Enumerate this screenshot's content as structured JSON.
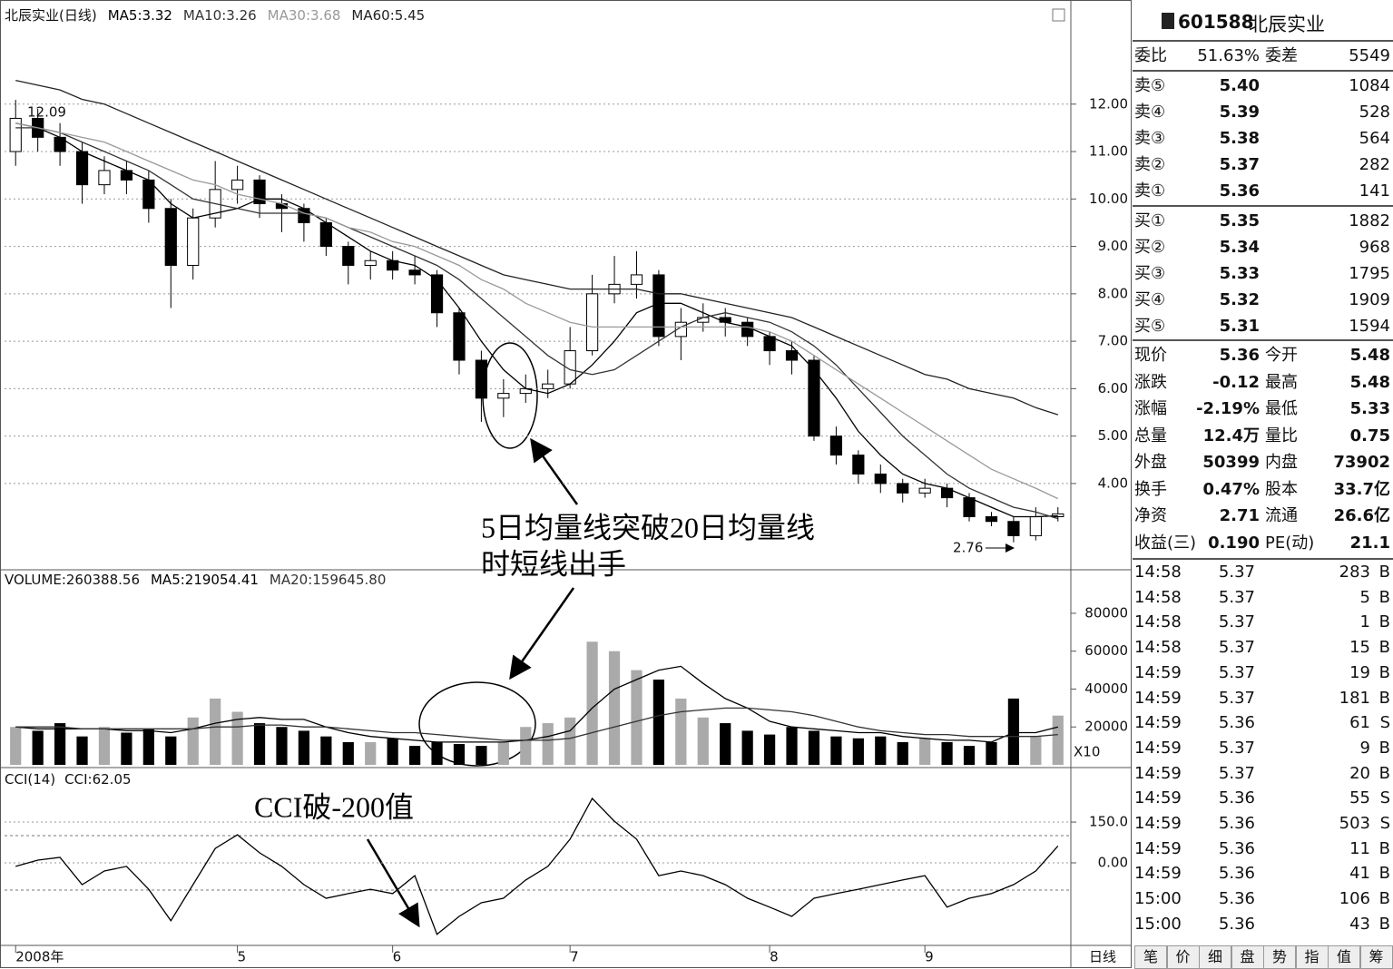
{
  "chart_data": [
    {
      "type": "candlestick",
      "title": "北辰实业(日线)",
      "categories": [
        "2008年",
        null,
        null,
        null,
        null,
        null,
        null,
        null,
        null,
        null,
        "5",
        null,
        null,
        null,
        null,
        null,
        null,
        "6",
        null,
        null,
        null,
        null,
        null,
        null,
        null,
        "7",
        null,
        null,
        null,
        null,
        null,
        null,
        null,
        null,
        "8",
        null,
        null,
        null,
        null,
        null,
        null,
        "9",
        null,
        null,
        null,
        null,
        null,
        null
      ],
      "open": [
        11.0,
        11.7,
        11.3,
        11.0,
        10.3,
        10.6,
        10.4,
        9.8,
        8.6,
        9.6,
        10.2,
        10.4,
        9.9,
        9.8,
        9.5,
        9.0,
        8.6,
        8.7,
        8.5,
        8.4,
        7.6,
        6.6,
        5.8,
        5.9,
        6.0,
        6.1,
        6.8,
        8.0,
        8.2,
        8.4,
        7.1,
        7.4,
        7.5,
        7.4,
        7.1,
        6.8,
        6.6,
        5.0,
        4.6,
        4.2,
        4.0,
        3.8,
        3.9,
        3.7,
        3.3,
        3.2,
        2.9,
        3.3
      ],
      "high": [
        12.09,
        11.9,
        11.6,
        11.2,
        10.9,
        10.8,
        10.6,
        10.0,
        9.8,
        10.8,
        10.7,
        10.5,
        10.1,
        9.9,
        9.6,
        9.1,
        8.9,
        8.9,
        8.8,
        8.5,
        7.7,
        6.8,
        6.2,
        6.3,
        6.4,
        7.3,
        8.4,
        8.8,
        8.9,
        8.5,
        7.7,
        7.8,
        7.7,
        7.5,
        7.2,
        7.0,
        6.7,
        5.2,
        4.7,
        4.4,
        4.1,
        4.1,
        4.0,
        3.8,
        3.4,
        3.3,
        3.5,
        3.5
      ],
      "low": [
        10.7,
        11.0,
        10.7,
        9.9,
        10.1,
        10.1,
        9.5,
        7.7,
        8.3,
        9.4,
        9.9,
        9.6,
        9.3,
        9.1,
        8.8,
        8.2,
        8.3,
        8.3,
        8.2,
        7.3,
        6.3,
        5.3,
        5.4,
        5.7,
        5.8,
        6.0,
        6.7,
        7.8,
        7.9,
        6.9,
        6.6,
        7.2,
        7.1,
        6.9,
        6.5,
        6.3,
        4.9,
        4.4,
        4.0,
        3.8,
        3.6,
        3.7,
        3.5,
        3.2,
        3.1,
        2.76,
        2.8,
        3.2
      ],
      "close": [
        11.7,
        11.3,
        11.0,
        10.3,
        10.6,
        10.4,
        9.8,
        8.6,
        9.6,
        10.2,
        10.4,
        9.9,
        9.8,
        9.5,
        9.0,
        8.6,
        8.7,
        8.5,
        8.4,
        7.6,
        6.6,
        5.8,
        5.9,
        6.0,
        6.1,
        6.8,
        8.0,
        8.2,
        8.4,
        7.1,
        7.4,
        7.5,
        7.4,
        7.1,
        6.8,
        6.6,
        5.0,
        4.6,
        4.2,
        4.0,
        3.8,
        3.9,
        3.7,
        3.3,
        3.2,
        2.9,
        3.3,
        3.36
      ],
      "series": [
        {
          "label": "MA5:3.32",
          "color": "#000000",
          "values": [
            11.6,
            11.5,
            11.3,
            11.0,
            10.8,
            10.6,
            10.4,
            9.9,
            9.6,
            9.7,
            9.8,
            10.0,
            10.0,
            9.8,
            9.5,
            9.2,
            8.9,
            8.7,
            8.6,
            8.3,
            7.7,
            7.0,
            6.4,
            6.0,
            5.9,
            6.1,
            6.5,
            7.0,
            7.6,
            7.8,
            7.8,
            7.6,
            7.4,
            7.3,
            7.1,
            6.9,
            6.4,
            5.8,
            5.1,
            4.6,
            4.2,
            4.0,
            3.9,
            3.7,
            3.5,
            3.3,
            3.3,
            3.32
          ]
        },
        {
          "label": "MA10:3.26",
          "color": "#333333",
          "values": [
            11.5,
            11.5,
            11.4,
            11.2,
            11.0,
            10.8,
            10.6,
            10.3,
            10.0,
            9.9,
            9.8,
            9.7,
            9.7,
            9.7,
            9.6,
            9.4,
            9.2,
            9.0,
            8.8,
            8.6,
            8.3,
            7.9,
            7.5,
            7.1,
            6.7,
            6.4,
            6.3,
            6.4,
            6.7,
            7.0,
            7.3,
            7.5,
            7.6,
            7.5,
            7.4,
            7.2,
            6.9,
            6.5,
            6.0,
            5.5,
            5.0,
            4.6,
            4.2,
            3.9,
            3.7,
            3.5,
            3.4,
            3.26
          ]
        },
        {
          "label": "MA30:3.68",
          "color": "#999999",
          "values": [
            11.6,
            11.5,
            11.4,
            11.3,
            11.2,
            11.0,
            10.8,
            10.6,
            10.4,
            10.3,
            10.1,
            10.0,
            9.9,
            9.7,
            9.6,
            9.4,
            9.3,
            9.1,
            9.0,
            8.8,
            8.6,
            8.3,
            8.1,
            7.8,
            7.6,
            7.4,
            7.3,
            7.3,
            7.3,
            7.3,
            7.3,
            7.3,
            7.3,
            7.3,
            7.2,
            7.0,
            6.7,
            6.4,
            6.1,
            5.8,
            5.5,
            5.2,
            4.9,
            4.6,
            4.3,
            4.1,
            3.9,
            3.68
          ]
        },
        {
          "label": "MA60:5.45",
          "color": "#222222",
          "values": [
            12.5,
            12.4,
            12.3,
            12.1,
            12.0,
            11.8,
            11.6,
            11.4,
            11.2,
            11.0,
            10.8,
            10.6,
            10.4,
            10.2,
            10.0,
            9.8,
            9.6,
            9.4,
            9.2,
            9.0,
            8.8,
            8.6,
            8.4,
            8.3,
            8.2,
            8.1,
            8.1,
            8.1,
            8.1,
            8.0,
            8.0,
            7.9,
            7.8,
            7.7,
            7.6,
            7.5,
            7.3,
            7.1,
            6.9,
            6.7,
            6.5,
            6.3,
            6.2,
            6.0,
            5.9,
            5.8,
            5.6,
            5.45
          ]
        }
      ],
      "ylim": [
        2.2,
        14.1
      ],
      "yticks": [
        {
          "value": 4,
          "label": "4.00"
        },
        {
          "value": 5,
          "label": "5.00"
        },
        {
          "value": 6,
          "label": "6.00"
        },
        {
          "value": 7,
          "label": "7.00"
        },
        {
          "value": 8,
          "label": "8.00"
        },
        {
          "value": 9,
          "label": "9.00"
        },
        {
          "value": 10,
          "label": "10.00"
        },
        {
          "value": 11,
          "label": "11.00"
        },
        {
          "value": 12,
          "label": "12.00"
        }
      ],
      "grid": true,
      "annotations": [
        "12.09",
        "2.76"
      ],
      "callout": [
        "5日均量线突破20日均量线",
        "时短线出手"
      ],
      "period": "日线"
    },
    {
      "type": "bar",
      "label": "VOLUME:260388.56",
      "unit_label": "X10",
      "values": [
        20000,
        18000,
        22000,
        15000,
        20000,
        17000,
        19000,
        15000,
        25000,
        35000,
        28000,
        22000,
        20000,
        18000,
        15000,
        12000,
        12000,
        14000,
        10000,
        12000,
        11000,
        10000,
        12000,
        20000,
        22000,
        25000,
        65000,
        60000,
        50000,
        45000,
        35000,
        25000,
        22000,
        18000,
        16000,
        20000,
        18000,
        15000,
        14000,
        15000,
        12000,
        14000,
        12000,
        10000,
        12000,
        35000,
        15000,
        26000
      ],
      "series": [
        {
          "label": "MA5:219054.41",
          "color": "#000000",
          "values": [
            20000,
            19000,
            19000,
            19000,
            19000,
            18000,
            18000,
            17000,
            19000,
            22000,
            24000,
            25000,
            24000,
            24000,
            20000,
            17000,
            15000,
            14000,
            13000,
            12000,
            12000,
            12000,
            12000,
            13000,
            15000,
            18000,
            30000,
            40000,
            45000,
            50000,
            52000,
            43000,
            35000,
            30000,
            23000,
            20000,
            19000,
            18000,
            17000,
            17000,
            15000,
            14000,
            13000,
            13000,
            12000,
            17000,
            17000,
            20000
          ]
        },
        {
          "label": "MA20:159645.80",
          "color": "#333333",
          "values": [
            20000,
            20000,
            20000,
            19000,
            19000,
            19000,
            19000,
            19000,
            19000,
            20000,
            20000,
            21000,
            21000,
            20000,
            20000,
            19000,
            18000,
            17000,
            17000,
            16000,
            15000,
            14000,
            13000,
            13000,
            13000,
            14000,
            17000,
            20000,
            23000,
            26000,
            28000,
            29000,
            30000,
            30000,
            29000,
            28000,
            26000,
            23000,
            20000,
            18000,
            17000,
            16000,
            16000,
            15000,
            15000,
            15000,
            15000,
            16000
          ]
        }
      ],
      "ylim": [
        0,
        102000
      ],
      "yticks": [
        20000,
        40000,
        60000,
        80000
      ],
      "grid": false
    },
    {
      "type": "line",
      "title": "CCI(14)",
      "label": "CCI:62.05",
      "color": "#000000",
      "values": [
        -13,
        10,
        20,
        -80,
        -30,
        -13,
        -97,
        -213,
        -80,
        53,
        103,
        37,
        -13,
        -80,
        -130,
        -113,
        -97,
        -113,
        -47,
        -263,
        -197,
        -147,
        -130,
        -63,
        -13,
        87,
        237,
        153,
        87,
        -47,
        -30,
        -47,
        -80,
        -130,
        -163,
        -197,
        -130,
        -113,
        -97,
        -80,
        -63,
        -47,
        -163,
        -130,
        -113,
        -80,
        -30,
        62.05
      ],
      "hlines": [
        100,
        -100
      ],
      "ylim": [
        -297,
        337
      ],
      "yticks": [
        {
          "value": 150,
          "label": "150.0"
        },
        {
          "value": 0,
          "label": "0.00"
        }
      ],
      "grid": true,
      "callout": [
        "CCI破-200值"
      ]
    }
  ],
  "sidebar": {
    "code": "601588",
    "name": "北辰实业",
    "ratio": [
      "委比",
      "51.63%",
      "委差",
      "5549"
    ],
    "asks": [
      [
        "卖⑤",
        "5.40",
        "1084"
      ],
      [
        "卖④",
        "5.39",
        "528"
      ],
      [
        "卖③",
        "5.38",
        "564"
      ],
      [
        "卖②",
        "5.37",
        "282"
      ],
      [
        "卖①",
        "5.36",
        "141"
      ]
    ],
    "bids": [
      [
        "买①",
        "5.35",
        "1882"
      ],
      [
        "买②",
        "5.34",
        "968"
      ],
      [
        "买③",
        "5.33",
        "1795"
      ],
      [
        "买④",
        "5.32",
        "1909"
      ],
      [
        "买⑤",
        "5.31",
        "1594"
      ]
    ],
    "quote": [
      [
        "现价",
        "5.36",
        "今开",
        "5.48"
      ],
      [
        "涨跌",
        "-0.12",
        "最高",
        "5.48"
      ],
      [
        "涨幅",
        "-2.19%",
        "最低",
        "5.33"
      ],
      [
        "总量",
        "12.4万",
        "量比",
        "0.75"
      ],
      [
        "外盘",
        "50399",
        "内盘",
        "73902"
      ],
      [
        "换手",
        "0.47%",
        "股本",
        "33.7亿"
      ],
      [
        "净资",
        "2.71",
        "流通",
        "26.6亿"
      ],
      [
        "收益(三)",
        "0.190",
        "PE(动)",
        "21.1"
      ]
    ],
    "trades": [
      [
        "14:58",
        "5.37",
        "283",
        "B"
      ],
      [
        "14:58",
        "5.37",
        "5",
        "B"
      ],
      [
        "14:58",
        "5.37",
        "1",
        "B"
      ],
      [
        "14:58",
        "5.37",
        "15",
        "B"
      ],
      [
        "14:59",
        "5.37",
        "19",
        "B"
      ],
      [
        "14:59",
        "5.37",
        "181",
        "B"
      ],
      [
        "14:59",
        "5.36",
        "61",
        "S"
      ],
      [
        "14:59",
        "5.37",
        "9",
        "B"
      ],
      [
        "14:59",
        "5.37",
        "20",
        "B"
      ],
      [
        "14:59",
        "5.36",
        "55",
        "S"
      ],
      [
        "14:59",
        "5.36",
        "503",
        "S"
      ],
      [
        "14:59",
        "5.36",
        "11",
        "B"
      ],
      [
        "14:59",
        "5.36",
        "41",
        "B"
      ],
      [
        "15:00",
        "5.36",
        "106",
        "B"
      ],
      [
        "15:00",
        "5.36",
        "43",
        "B"
      ]
    ],
    "tabs": [
      "笔",
      "价",
      "细",
      "盘",
      "势",
      "指",
      "值",
      "筹"
    ]
  }
}
